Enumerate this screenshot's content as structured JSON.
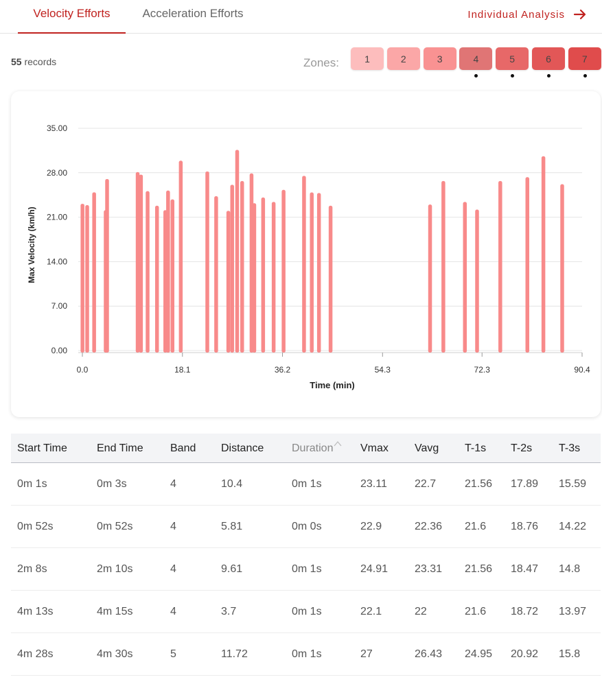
{
  "tabs": {
    "velocity": "Velocity Efforts",
    "acceleration": "Acceleration Efforts",
    "individual": "Individual Analysis"
  },
  "records": {
    "count": "55",
    "label": "records"
  },
  "zones": {
    "label": "Zones:",
    "items": [
      {
        "label": "1",
        "color": "#fdbdbd",
        "marked": false
      },
      {
        "label": "2",
        "color": "#fba7a7",
        "marked": false
      },
      {
        "label": "3",
        "color": "#f99292",
        "marked": false
      },
      {
        "label": "4",
        "color": "#e07575",
        "marked": true
      },
      {
        "label": "5",
        "color": "#e76868",
        "marked": true
      },
      {
        "label": "6",
        "color": "#e25757",
        "marked": true
      },
      {
        "label": "7",
        "color": "#e04c4c",
        "marked": true
      }
    ]
  },
  "chart_data": {
    "type": "bar",
    "xlabel": "Time (min)",
    "ylabel": "Max Velocity (km/h)",
    "xlim": [
      0.0,
      90.4
    ],
    "ylim": [
      0,
      35
    ],
    "xticks": [
      "0.0",
      "18.1",
      "36.2",
      "54.3",
      "72.3",
      "90.4"
    ],
    "yticks": [
      "0.00",
      "7.00",
      "14.00",
      "21.00",
      "28.00",
      "35.00"
    ],
    "grid": true,
    "bar_color": "#f88a8a",
    "x": [
      0.02,
      0.87,
      2.13,
      4.22,
      4.47,
      10.0,
      10.6,
      11.8,
      13.5,
      15.0,
      15.5,
      16.3,
      17.8,
      22.6,
      24.2,
      26.4,
      27.1,
      28.0,
      28.9,
      30.6,
      31.1,
      32.7,
      34.6,
      36.4,
      40.1,
      41.5,
      42.8,
      44.9,
      62.9,
      65.3,
      69.2,
      71.4,
      75.6,
      80.5,
      83.4,
      86.8
    ],
    "values": [
      23.11,
      22.9,
      24.91,
      22.1,
      27.0,
      28.1,
      27.7,
      25.1,
      22.8,
      22.1,
      25.2,
      23.8,
      29.9,
      28.2,
      24.3,
      22.0,
      26.1,
      31.6,
      26.7,
      27.9,
      23.2,
      24.1,
      23.4,
      25.3,
      27.5,
      24.9,
      24.8,
      22.8,
      23.0,
      26.7,
      23.4,
      22.2,
      26.7,
      27.3,
      30.6,
      26.2
    ]
  },
  "table": {
    "headers": [
      "Start Time",
      "End Time",
      "Band",
      "Distance",
      "Duration",
      "Vmax",
      "Vavg",
      "T-1s",
      "T-2s",
      "T-3s"
    ],
    "rows": [
      [
        "0m 1s",
        "0m 3s",
        "4",
        "10.4",
        "0m 1s",
        "23.11",
        "22.7",
        "21.56",
        "17.89",
        "15.59"
      ],
      [
        "0m 52s",
        "0m 52s",
        "4",
        "5.81",
        "0m 0s",
        "22.9",
        "22.36",
        "21.6",
        "18.76",
        "14.22"
      ],
      [
        "2m 8s",
        "2m 10s",
        "4",
        "9.61",
        "0m 1s",
        "24.91",
        "23.31",
        "21.56",
        "18.47",
        "14.8"
      ],
      [
        "4m 13s",
        "4m 15s",
        "4",
        "3.7",
        "0m 1s",
        "22.1",
        "22",
        "21.6",
        "18.72",
        "13.97"
      ],
      [
        "4m 28s",
        "4m 30s",
        "5",
        "11.72",
        "0m 1s",
        "27",
        "26.43",
        "24.95",
        "20.92",
        "15.8"
      ]
    ]
  }
}
